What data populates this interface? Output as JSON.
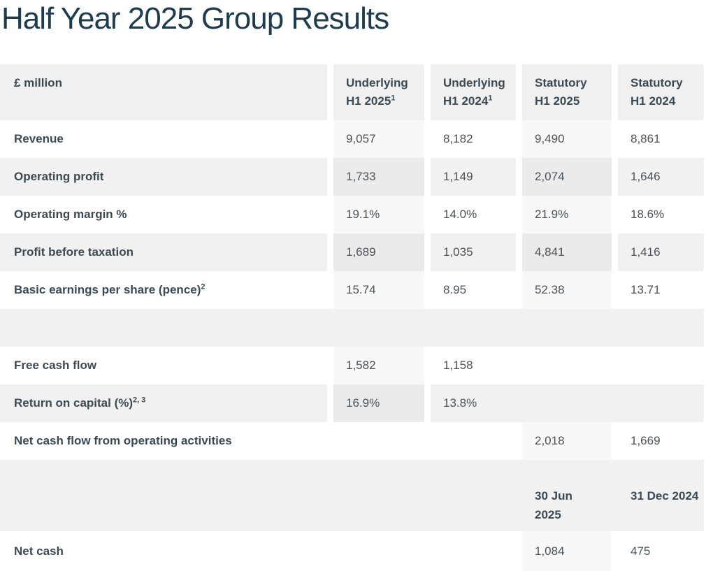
{
  "page": {
    "title": "Half Year 2025 Group Results"
  },
  "colors": {
    "title_text": "#1e3c4e",
    "header_bg": "#f0f0f1",
    "row_alt_bg": "#f1f1f2",
    "highlight_col_bg": "#f8f8f8",
    "highlight_col_on_gray_bg": "#ebebec",
    "label_text": "#3c4a54",
    "value_text": "#4b5359"
  },
  "table": {
    "header": {
      "col0": "£ million",
      "cols": [
        {
          "line1": "Underlying",
          "line2": "H1 2025",
          "sup": "1"
        },
        {
          "line1": "Underlying",
          "line2": "H1 2024",
          "sup": "1"
        },
        {
          "line1": "Statutory",
          "line2": "H1 2025",
          "sup": ""
        },
        {
          "line1": "Statutory",
          "line2": "H1 2024",
          "sup": ""
        }
      ]
    },
    "rows": [
      {
        "label": "Revenue",
        "sup": "",
        "values": [
          "9,057",
          "8,182",
          "9,490",
          "8,861"
        ]
      },
      {
        "label": "Operating profit",
        "sup": "",
        "values": [
          "1,733",
          "1,149",
          "2,074",
          "1,646"
        ]
      },
      {
        "label": "Operating margin %",
        "sup": "",
        "values": [
          "19.1%",
          "14.0%",
          "21.9%",
          "18.6%"
        ]
      },
      {
        "label": "Profit before taxation",
        "sup": "",
        "values": [
          "1,689",
          "1,035",
          "4,841",
          "1,416"
        ]
      },
      {
        "label": "Basic earnings per share (pence)",
        "sup": "2",
        "values": [
          "15.74",
          "8.95",
          "52.38",
          "13.71"
        ]
      },
      {
        "label": "Free cash flow",
        "sup": "",
        "values": [
          "1,582",
          "1,158",
          "",
          ""
        ]
      },
      {
        "label": "Return on capital (%)",
        "sup": "2, 3",
        "values": [
          "16.9%",
          "13.8%",
          "",
          ""
        ]
      },
      {
        "label": "Net cash flow from operating activities",
        "sup": "",
        "values": [
          "",
          "",
          "2,018",
          "1,669"
        ]
      },
      {
        "label": "Net cash",
        "sup": "",
        "values": [
          "",
          "",
          "1,084",
          "475"
        ]
      }
    ],
    "date_header": {
      "col_2025": "30 Jun 2025",
      "col_2024": "31 Dec 2024"
    }
  }
}
